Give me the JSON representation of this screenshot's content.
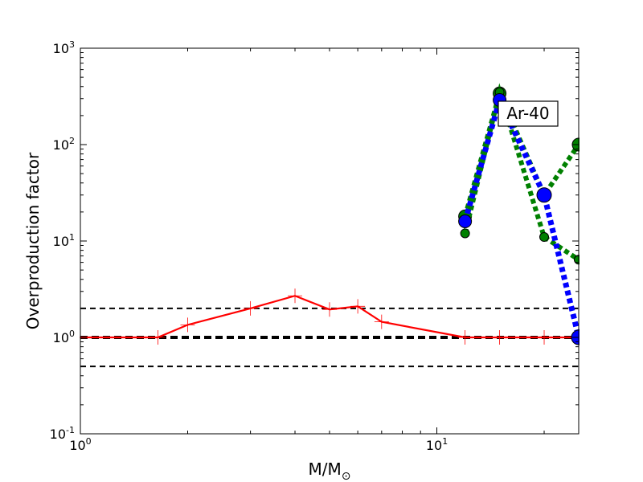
{
  "chart_data": {
    "type": "line",
    "xscale": "log",
    "yscale": "log",
    "xlim": [
      1,
      25
    ],
    "ylim": [
      0.1,
      1000
    ],
    "xlabel": {
      "main": "M/M",
      "subscript": "⊙"
    },
    "ylabel": "Overproduction factor",
    "x_ticks": [
      {
        "value": 1,
        "base": "10",
        "exp": "0"
      },
      {
        "value": 10,
        "base": "10",
        "exp": "1"
      }
    ],
    "y_ticks": [
      {
        "value": 0.1,
        "base": "10",
        "exp": "-1"
      },
      {
        "value": 1,
        "base": "10",
        "exp": "0"
      },
      {
        "value": 10,
        "base": "10",
        "exp": "1"
      },
      {
        "value": 100,
        "base": "10",
        "exp": "2"
      },
      {
        "value": 1000,
        "base": "10",
        "exp": "3"
      }
    ],
    "annotation": "Ar-40",
    "reference_lines": [
      {
        "y": 2,
        "color": "#000000",
        "style": "dashed",
        "weight": "normal"
      },
      {
        "y": 1,
        "color": "#000000",
        "style": "dashed",
        "weight": "thick"
      },
      {
        "y": 0.5,
        "color": "#000000",
        "style": "dashed",
        "weight": "normal"
      }
    ],
    "series": [
      {
        "color": "#ff0000",
        "style": "solid",
        "marker": "plus",
        "x": [
          1.0,
          1.65,
          2.0,
          3.0,
          4.0,
          5.0,
          6.0,
          7.0,
          12.0,
          15.0,
          20.0,
          25.0
        ],
        "y": [
          1.0,
          1.0,
          1.35,
          2.0,
          2.7,
          1.95,
          2.1,
          1.45,
          1.0,
          1.0,
          1.0,
          1.0
        ]
      },
      {
        "color": "#008000",
        "style": "dotted",
        "marker": "circle",
        "x": [
          12.0,
          15.0,
          20.0,
          25.0
        ],
        "y": [
          18,
          340,
          30,
          100
        ]
      },
      {
        "color": "#008000",
        "style": "dotted",
        "marker": "circle",
        "x": [
          12.0,
          15.0,
          20.0,
          25.0
        ],
        "y": [
          12,
          350,
          11,
          6.4
        ]
      },
      {
        "color": "#0000ff",
        "style": "dotted",
        "marker": "circle",
        "x": [
          12.0,
          15.0,
          20.0,
          25.0
        ],
        "y": [
          16,
          290,
          30,
          1.0
        ]
      }
    ]
  }
}
